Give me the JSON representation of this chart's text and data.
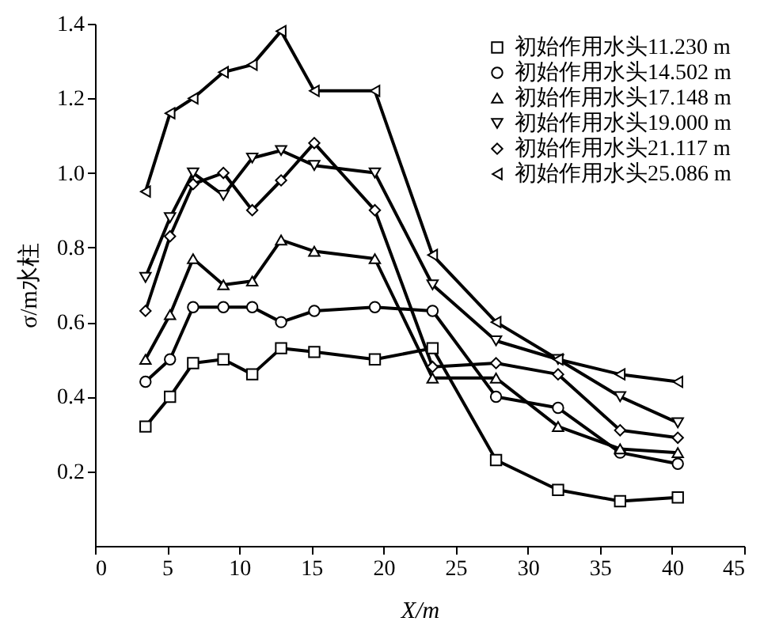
{
  "chart_data": {
    "type": "line",
    "xlabel": "X/m",
    "ylabel": "σ/m水柱",
    "x": [
      3.5,
      5.2,
      6.8,
      8.9,
      10.9,
      12.9,
      15.2,
      19.4,
      23.4,
      27.8,
      32.1,
      36.4,
      40.4
    ],
    "xlim": [
      0,
      45
    ],
    "xticks": [
      0,
      5,
      10,
      15,
      20,
      25,
      30,
      35,
      40,
      45
    ],
    "ylim": [
      0,
      1.4
    ],
    "yticks": [
      0.2,
      0.4,
      0.6,
      0.8,
      {
        "value": 1,
        "label": "1.0"
      },
      1.2,
      1.4
    ],
    "grid": false,
    "legend": "top right",
    "line_style": "solid",
    "series": [
      {
        "name": "初始作用水头11.230 m",
        "color": "#000000",
        "marker": "square",
        "values": [
          0.32,
          0.4,
          0.49,
          0.5,
          0.46,
          0.53,
          0.52,
          0.5,
          0.53,
          0.23,
          0.15,
          0.12,
          0.13
        ]
      },
      {
        "name": "初始作用水头14.502 m",
        "color": "#000000",
        "marker": "circle",
        "values": [
          0.44,
          0.5,
          0.64,
          0.64,
          0.64,
          0.6,
          0.63,
          0.64,
          0.63,
          0.4,
          0.37,
          0.25,
          0.22
        ]
      },
      {
        "name": "初始作用水头17.148 m",
        "color": "#000000",
        "marker": "triangle-up",
        "values": [
          0.5,
          0.62,
          0.77,
          0.7,
          0.71,
          0.82,
          0.79,
          0.77,
          0.45,
          0.45,
          0.32,
          0.26,
          0.25
        ]
      },
      {
        "name": "初始作用水头19.000 m",
        "color": "#000000",
        "marker": "triangle-down",
        "values": [
          0.72,
          0.88,
          1.0,
          0.94,
          1.04,
          1.06,
          1.02,
          1.0,
          0.7,
          0.55,
          0.5,
          0.4,
          0.33
        ]
      },
      {
        "name": "初始作用水头21.117 m",
        "color": "#000000",
        "marker": "diamond",
        "values": [
          0.63,
          0.83,
          0.97,
          1.0,
          0.9,
          0.98,
          1.08,
          0.9,
          0.48,
          0.49,
          0.46,
          0.31,
          0.29
        ]
      },
      {
        "name": "初始作用水头25.086 m",
        "color": "#000000",
        "marker": "triangle-left",
        "values": [
          0.95,
          1.16,
          1.2,
          1.27,
          1.29,
          1.38,
          1.22,
          1.22,
          0.78,
          0.6,
          0.5,
          0.46,
          0.44
        ]
      }
    ]
  }
}
